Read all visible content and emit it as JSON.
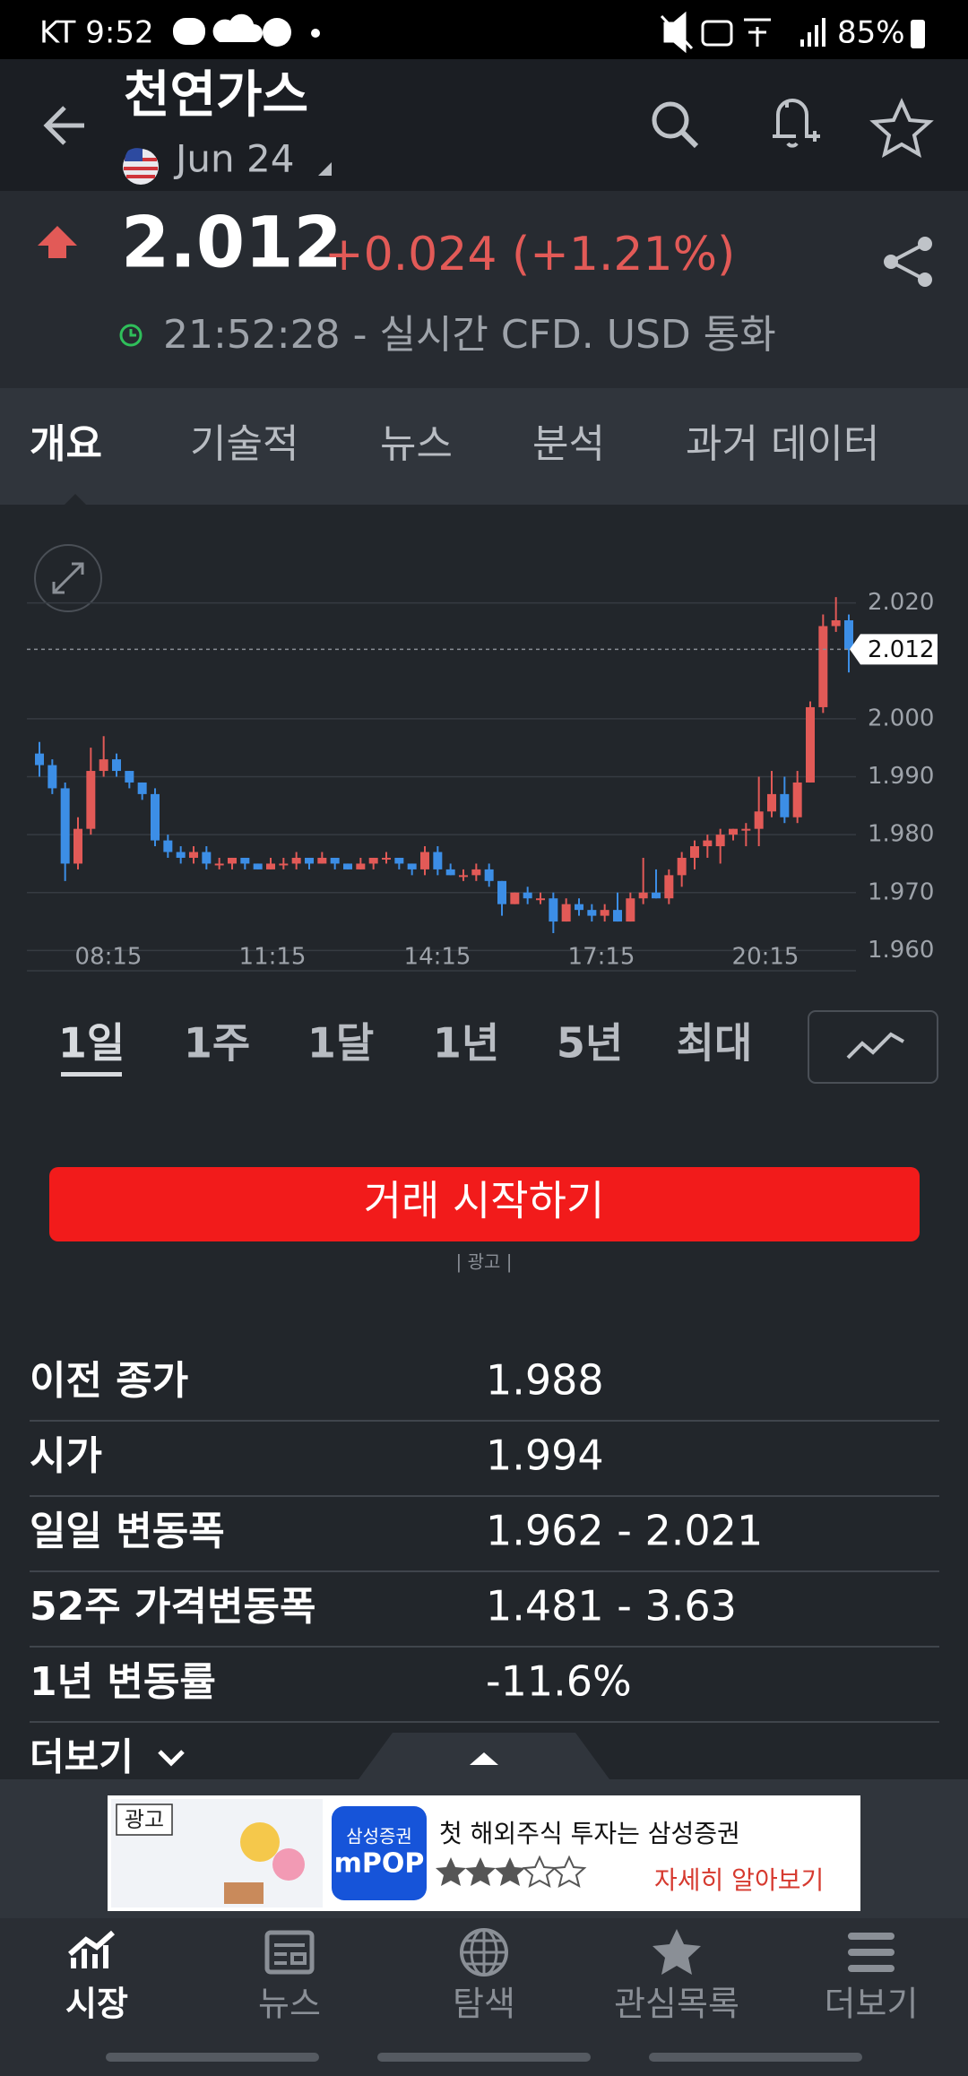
{
  "status_bar": {
    "carrier_time": "KT 9:52",
    "battery": "85%"
  },
  "header": {
    "title": "천연가스",
    "date": "Jun 24"
  },
  "quote": {
    "price": "2.012",
    "change": "+0.024 (+1.21%)",
    "time_note": "21:52:28 - 실시간 CFD. USD 통화"
  },
  "tabs": [
    "개요",
    "기술적",
    "뉴스",
    "분석",
    "과거 데이터"
  ],
  "chart_data": {
    "type": "candlestick",
    "up_color": "#e25a57",
    "down_color": "#3c8ee6",
    "candles": [
      [
        1.994,
        1.996,
        1.99,
        1.992
      ],
      [
        1.992,
        1.993,
        1.987,
        1.988
      ],
      [
        1.988,
        1.989,
        1.972,
        1.975
      ],
      [
        1.975,
        1.983,
        1.974,
        1.981
      ],
      [
        1.981,
        1.995,
        1.98,
        1.991
      ],
      [
        1.991,
        1.997,
        1.99,
        1.993
      ],
      [
        1.993,
        1.994,
        1.99,
        1.991
      ],
      [
        1.991,
        1.991,
        1.988,
        1.989
      ],
      [
        1.989,
        1.989,
        1.986,
        1.987
      ],
      [
        1.987,
        1.988,
        1.978,
        1.979
      ],
      [
        1.979,
        1.98,
        1.976,
        1.977
      ],
      [
        1.977,
        1.978,
        1.975,
        1.976
      ],
      [
        1.976,
        1.978,
        1.975,
        1.977
      ],
      [
        1.977,
        1.978,
        1.974,
        1.975
      ],
      [
        1.975,
        1.976,
        1.974,
        1.975
      ],
      [
        1.975,
        1.976,
        1.974,
        1.976
      ],
      [
        1.976,
        1.976,
        1.974,
        1.975
      ],
      [
        1.975,
        1.975,
        1.974,
        1.974
      ],
      [
        1.974,
        1.976,
        1.974,
        1.975
      ],
      [
        1.975,
        1.976,
        1.974,
        1.975
      ],
      [
        1.975,
        1.977,
        1.974,
        1.976
      ],
      [
        1.976,
        1.976,
        1.974,
        1.975
      ],
      [
        1.975,
        1.977,
        1.975,
        1.976
      ],
      [
        1.976,
        1.976,
        1.974,
        1.975
      ],
      [
        1.975,
        1.975,
        1.974,
        1.974
      ],
      [
        1.974,
        1.976,
        1.974,
        1.975
      ],
      [
        1.975,
        1.976,
        1.974,
        1.976
      ],
      [
        1.976,
        1.977,
        1.975,
        1.976
      ],
      [
        1.976,
        1.976,
        1.974,
        1.975
      ],
      [
        1.975,
        1.975,
        1.973,
        1.974
      ],
      [
        1.974,
        1.978,
        1.973,
        1.977
      ],
      [
        1.977,
        1.978,
        1.973,
        1.974
      ],
      [
        1.974,
        1.975,
        1.973,
        1.973
      ],
      [
        1.973,
        1.974,
        1.972,
        1.973
      ],
      [
        1.973,
        1.975,
        1.972,
        1.974
      ],
      [
        1.974,
        1.975,
        1.971,
        1.972
      ],
      [
        1.972,
        1.972,
        1.966,
        1.968
      ],
      [
        1.968,
        1.97,
        1.968,
        1.97
      ],
      [
        1.97,
        1.971,
        1.968,
        1.969
      ],
      [
        1.969,
        1.97,
        1.968,
        1.969
      ],
      [
        1.969,
        1.97,
        1.963,
        1.965
      ],
      [
        1.965,
        1.969,
        1.965,
        1.968
      ],
      [
        1.968,
        1.969,
        1.966,
        1.967
      ],
      [
        1.967,
        1.968,
        1.965,
        1.966
      ],
      [
        1.966,
        1.968,
        1.965,
        1.967
      ],
      [
        1.967,
        1.97,
        1.965,
        1.965
      ],
      [
        1.965,
        1.97,
        1.965,
        1.969
      ],
      [
        1.969,
        1.976,
        1.968,
        1.97
      ],
      [
        1.97,
        1.974,
        1.969,
        1.969
      ],
      [
        1.969,
        1.974,
        1.968,
        1.973
      ],
      [
        1.973,
        1.977,
        1.971,
        1.976
      ],
      [
        1.976,
        1.979,
        1.974,
        1.978
      ],
      [
        1.978,
        1.98,
        1.976,
        1.979
      ],
      [
        1.978,
        1.981,
        1.975,
        1.98
      ],
      [
        1.98,
        1.981,
        1.979,
        1.981
      ],
      [
        1.981,
        1.982,
        1.978,
        1.981
      ],
      [
        1.981,
        1.99,
        1.978,
        1.984
      ],
      [
        1.984,
        1.991,
        1.983,
        1.987
      ],
      [
        1.987,
        1.99,
        1.982,
        1.983
      ],
      [
        1.983,
        1.991,
        1.982,
        1.989
      ],
      [
        1.989,
        2.003,
        1.989,
        2.002
      ],
      [
        2.002,
        2.018,
        2.001,
        2.016
      ],
      [
        2.016,
        2.021,
        2.015,
        2.017
      ],
      [
        2.017,
        2.018,
        2.008,
        2.012
      ]
    ],
    "ylim": [
      1.9565,
      2.0235
    ],
    "yticks": [
      {
        "value": 1.96,
        "label": "1.960"
      },
      {
        "value": 1.97,
        "label": "1.970"
      },
      {
        "value": 1.98,
        "label": "1.980"
      },
      {
        "value": 1.99,
        "label": "1.990"
      },
      {
        "value": 2.0,
        "label": "2.000"
      },
      {
        "value": 2.02,
        "label": "2.020"
      }
    ],
    "x_labels": [
      "08:15",
      "11:15",
      "14:15",
      "17:15",
      "20:15"
    ],
    "current_price": {
      "value": 2.012,
      "label": "2.012"
    },
    "grid": true
  },
  "periods": [
    "1일",
    "1주",
    "1달",
    "1년",
    "5년",
    "최대"
  ],
  "cta": "거래 시작하기",
  "ad_label": "| 광고 |",
  "stats": {
    "rows": [
      [
        "이전 종가",
        "1.988"
      ],
      [
        "시가",
        "1.994"
      ],
      [
        "일일 변동폭",
        "1.962 - 2.021"
      ],
      [
        "52주 가격변동폭",
        "1.481 - 3.63"
      ],
      [
        "1년 변동률",
        "-11.6%"
      ]
    ]
  },
  "more": "더보기",
  "ad": {
    "tag": "광고",
    "brand": "삼성증권",
    "app": "mPOP",
    "headline": "첫 해외주식 투자는 삼성증권",
    "cta": "자세히 알아보기"
  },
  "nav": [
    "시장",
    "뉴스",
    "탐색",
    "관심목록",
    "더보기"
  ]
}
